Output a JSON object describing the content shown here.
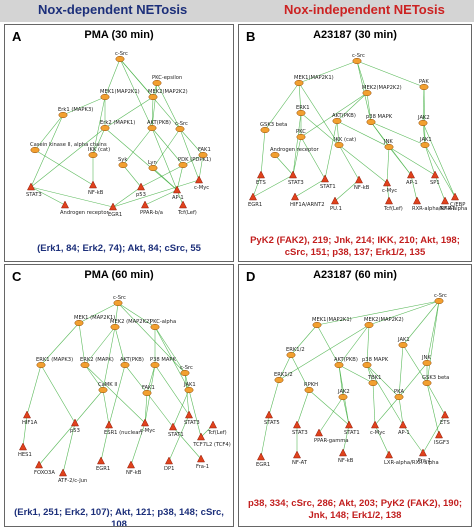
{
  "header": {
    "left": "Nox-dependent NETosis",
    "right": "Nox-independent NETosis"
  },
  "panels": [
    {
      "letter": "A",
      "title": "PMA (30 min)",
      "caption": "(Erk1, 84; Erk2, 74); Akt, 84; cSrc, 55",
      "nodes": [
        {
          "label": "c-Src",
          "shape": "ell"
        },
        {
          "label": "PKC-epsilon",
          "shape": "ell"
        },
        {
          "label": "MEK1(MAP2K1)",
          "shape": "ell"
        },
        {
          "label": "MEK2(MAP2K2)",
          "shape": "ell"
        },
        {
          "label": "Erk1 (MAPK3)",
          "shape": "ell"
        },
        {
          "label": "Erk2 (MAPK1)",
          "shape": "ell"
        },
        {
          "label": "AKT(PKB)",
          "shape": "ell"
        },
        {
          "label": "c-Src",
          "shape": "ell"
        },
        {
          "label": "Casein kinase II, alpha chains",
          "shape": "ell"
        },
        {
          "label": "IKK (cat)",
          "shape": "ell"
        },
        {
          "label": "Syk",
          "shape": "ell"
        },
        {
          "label": "Lyn",
          "shape": "ell"
        },
        {
          "label": "PDK (PDPK1)",
          "shape": "ell"
        },
        {
          "label": "FAK1",
          "shape": "ell"
        },
        {
          "label": "STAT3",
          "shape": "tri"
        },
        {
          "label": "NF-kB",
          "shape": "tri"
        },
        {
          "label": "c-Myc",
          "shape": "tri"
        },
        {
          "label": "p53",
          "shape": "tri"
        },
        {
          "label": "AP-1",
          "shape": "tri"
        },
        {
          "label": "Androgen receptor",
          "shape": "tri"
        },
        {
          "label": "EGR1",
          "shape": "tri"
        },
        {
          "label": "PPAR-b/a",
          "shape": "tri"
        },
        {
          "label": "Tcf(Lef)",
          "shape": "tri"
        }
      ]
    },
    {
      "letter": "B",
      "title": "A23187 (30 min)",
      "caption": "PyK2 (FAK2), 219; Jnk, 214; IKK, 210; Akt, 198; cSrc, 151; p38, 137; Erk1/2, 135",
      "nodes": [
        {
          "label": "c-Src",
          "shape": "ell"
        },
        {
          "label": "MEK1(MAP2K1)",
          "shape": "ell"
        },
        {
          "label": "MEK2(MAP2K2)",
          "shape": "ell"
        },
        {
          "label": "PAK",
          "shape": "ell"
        },
        {
          "label": "ERK1",
          "shape": "ell"
        },
        {
          "label": "AKT(PKB)",
          "shape": "ell"
        },
        {
          "label": "p38 MAPK",
          "shape": "ell"
        },
        {
          "label": "JAK2",
          "shape": "ell"
        },
        {
          "label": "GSK3 beta",
          "shape": "ell"
        },
        {
          "label": "PKC",
          "shape": "ell"
        },
        {
          "label": "IKK (cat)",
          "shape": "ell"
        },
        {
          "label": "Androgen receptor",
          "shape": "ell"
        },
        {
          "label": "JNK",
          "shape": "ell"
        },
        {
          "label": "JAK1",
          "shape": "ell"
        },
        {
          "label": "ETS",
          "shape": "tri"
        },
        {
          "label": "STAT3",
          "shape": "tri"
        },
        {
          "label": "STAT1",
          "shape": "tri"
        },
        {
          "label": "NF-kB",
          "shape": "tri"
        },
        {
          "label": "c-Myc",
          "shape": "tri"
        },
        {
          "label": "AP-1",
          "shape": "tri"
        },
        {
          "label": "SP1",
          "shape": "tri"
        },
        {
          "label": "C/EBP",
          "shape": "tri"
        },
        {
          "label": "EGR1",
          "shape": "tri"
        },
        {
          "label": "HIF1A/ARNT2",
          "shape": "tri"
        },
        {
          "label": "PU.1",
          "shape": "tri"
        },
        {
          "label": "Tcf(Lef)",
          "shape": "tri"
        },
        {
          "label": "RXR-alpha/RXR-alpha",
          "shape": "tri"
        },
        {
          "label": "NF-AT",
          "shape": "tri"
        }
      ]
    },
    {
      "letter": "C",
      "title": "PMA (60 min)",
      "caption": "(Erk1, 251; Erk2, 107); Akt, 121; p38, 148; cSrc, 108",
      "nodes": [
        {
          "label": "c-Src",
          "shape": "ell"
        },
        {
          "label": "MEK1 (MAP2K1)",
          "shape": "ell"
        },
        {
          "label": "MEK2 (MAP2K2)",
          "shape": "ell"
        },
        {
          "label": "PKC-alpha",
          "shape": "ell"
        },
        {
          "label": "ERK1 (MAPK3)",
          "shape": "ell"
        },
        {
          "label": "ERK2 (MAPK)",
          "shape": "ell"
        },
        {
          "label": "AKT(PKB)",
          "shape": "ell"
        },
        {
          "label": "P38 MAPK",
          "shape": "ell"
        },
        {
          "label": "c-Src",
          "shape": "ell"
        },
        {
          "label": "CaMK II",
          "shape": "ell"
        },
        {
          "label": "FAK1",
          "shape": "ell"
        },
        {
          "label": "JAK1",
          "shape": "ell"
        },
        {
          "label": "HIF1A",
          "shape": "tri"
        },
        {
          "label": "p53",
          "shape": "tri"
        },
        {
          "label": "ESR1 (nuclear)",
          "shape": "tri"
        },
        {
          "label": "c-Myc",
          "shape": "tri"
        },
        {
          "label": "STAT3",
          "shape": "tri"
        },
        {
          "label": "STAT1",
          "shape": "tri"
        },
        {
          "label": "TCF7L2 (TCF4)",
          "shape": "tri"
        },
        {
          "label": "HES1",
          "shape": "tri"
        },
        {
          "label": "FOXO3A",
          "shape": "tri"
        },
        {
          "label": "ATF-2/c-Jun",
          "shape": "tri"
        },
        {
          "label": "EGR1",
          "shape": "tri"
        },
        {
          "label": "NF-kB",
          "shape": "tri"
        },
        {
          "label": "DP1",
          "shape": "tri"
        },
        {
          "label": "Fra-1",
          "shape": "tri"
        },
        {
          "label": "Tcf(Lef)",
          "shape": "tri"
        }
      ]
    },
    {
      "letter": "D",
      "title": "A23187 (60 min)",
      "caption": "p38, 334; cSrc, 286; Akt, 203; PyK2 (FAK2), 190; Jnk, 148; Erk1/2, 138",
      "nodes": [
        {
          "label": "c-Src",
          "shape": "ell"
        },
        {
          "label": "MEK1(MAP2K1)",
          "shape": "ell"
        },
        {
          "label": "MEK2(MAP2K2)",
          "shape": "ell"
        },
        {
          "label": "ERK1/2",
          "shape": "ell"
        },
        {
          "label": "JAK1",
          "shape": "ell"
        },
        {
          "label": "AKT(PKB)",
          "shape": "ell"
        },
        {
          "label": "p38 MAPK",
          "shape": "ell"
        },
        {
          "label": "JNK",
          "shape": "ell"
        },
        {
          "label": "ERK1/2",
          "shape": "ell"
        },
        {
          "label": "RPKH",
          "shape": "ell"
        },
        {
          "label": "JAK2",
          "shape": "ell"
        },
        {
          "label": "PKA",
          "shape": "ell"
        },
        {
          "label": "TBK1",
          "shape": "ell"
        },
        {
          "label": "GSK3 beta",
          "shape": "ell"
        },
        {
          "label": "STAT5",
          "shape": "tri"
        },
        {
          "label": "STAT3",
          "shape": "tri"
        },
        {
          "label": "PPAR-gamma",
          "shape": "tri"
        },
        {
          "label": "STAT1",
          "shape": "tri"
        },
        {
          "label": "c-Myc",
          "shape": "tri"
        },
        {
          "label": "AP-1",
          "shape": "tri"
        },
        {
          "label": "ETS",
          "shape": "tri"
        },
        {
          "label": "ISGF3",
          "shape": "tri"
        },
        {
          "label": "EGR1",
          "shape": "tri"
        },
        {
          "label": "NF-AT",
          "shape": "tri"
        },
        {
          "label": "NF-kB",
          "shape": "tri"
        },
        {
          "label": "LXR-alpha/RXR-alpha",
          "shape": "tri"
        },
        {
          "label": "Fra-1",
          "shape": "tri"
        }
      ]
    }
  ]
}
